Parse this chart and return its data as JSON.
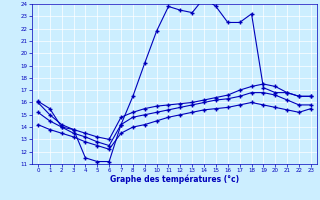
{
  "xlabel": "Graphe des températures (°c)",
  "bg_color": "#cceeff",
  "line_color": "#0000bb",
  "xlim": [
    -0.5,
    23.5
  ],
  "ylim": [
    11,
    24
  ],
  "yticks": [
    11,
    12,
    13,
    14,
    15,
    16,
    17,
    18,
    19,
    20,
    21,
    22,
    23,
    24
  ],
  "xticks": [
    0,
    1,
    2,
    3,
    4,
    5,
    6,
    7,
    8,
    9,
    10,
    11,
    12,
    13,
    14,
    15,
    16,
    17,
    18,
    19,
    20,
    21,
    22,
    23
  ],
  "line1_x": [
    0,
    1,
    2,
    3,
    4,
    5,
    6,
    7,
    8,
    9,
    10,
    11,
    12,
    13,
    14,
    15,
    16,
    17,
    18,
    19,
    20,
    21,
    22,
    23
  ],
  "line1_y": [
    16.1,
    15.5,
    14.0,
    13.8,
    11.5,
    11.2,
    11.2,
    14.2,
    16.5,
    19.2,
    21.8,
    23.8,
    23.5,
    23.3,
    24.5,
    23.8,
    22.5,
    22.5,
    23.2,
    17.2,
    16.8,
    16.8,
    16.5,
    16.5
  ],
  "line2_x": [
    0,
    1,
    2,
    3,
    4,
    5,
    6,
    7,
    8,
    9,
    10,
    11,
    12,
    13,
    14,
    15,
    16,
    17,
    18,
    19,
    20,
    21,
    22,
    23
  ],
  "line2_y": [
    16.0,
    15.0,
    14.2,
    13.8,
    13.5,
    13.2,
    13.0,
    14.8,
    15.2,
    15.5,
    15.7,
    15.8,
    15.9,
    16.0,
    16.2,
    16.4,
    16.6,
    17.0,
    17.3,
    17.5,
    17.3,
    16.8,
    16.5,
    16.5
  ],
  "line3_x": [
    0,
    1,
    2,
    3,
    4,
    5,
    6,
    7,
    8,
    9,
    10,
    11,
    12,
    13,
    14,
    15,
    16,
    17,
    18,
    19,
    20,
    21,
    22,
    23
  ],
  "line3_y": [
    15.2,
    14.5,
    14.0,
    13.5,
    13.2,
    12.8,
    12.5,
    14.2,
    14.8,
    15.0,
    15.2,
    15.4,
    15.6,
    15.8,
    16.0,
    16.2,
    16.3,
    16.5,
    16.8,
    16.8,
    16.6,
    16.2,
    15.8,
    15.8
  ],
  "line4_x": [
    0,
    1,
    2,
    3,
    4,
    5,
    6,
    7,
    8,
    9,
    10,
    11,
    12,
    13,
    14,
    15,
    16,
    17,
    18,
    19,
    20,
    21,
    22,
    23
  ],
  "line4_y": [
    14.2,
    13.8,
    13.5,
    13.2,
    12.8,
    12.5,
    12.2,
    13.5,
    14.0,
    14.2,
    14.5,
    14.8,
    15.0,
    15.2,
    15.4,
    15.5,
    15.6,
    15.8,
    16.0,
    15.8,
    15.6,
    15.4,
    15.2,
    15.5
  ]
}
